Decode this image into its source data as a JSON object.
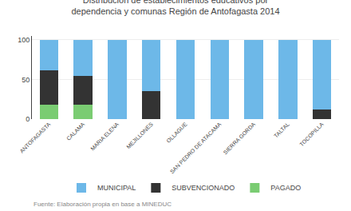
{
  "chart_data": {
    "type": "bar",
    "title": "Distribución de establecimientos educativos por",
    "subtitle": "dependencia y comunas Región de Antofagasta 2014",
    "categories": [
      "ANTOFAGASTA",
      "CALAMA",
      "MARIA ELENA",
      "MEJILLONES",
      "OLLAGUE",
      "SAN PEDRO DE ATACAMA",
      "SIERRA GORDA",
      "TALTAL",
      "TOCOPILLA"
    ],
    "series": [
      {
        "name": "MUNICIPAL",
        "color": "#6db8e8",
        "values": [
          38,
          45,
          100,
          65,
          100,
          100,
          100,
          100,
          88
        ]
      },
      {
        "name": "SUBVENCIONADO",
        "color": "#333333",
        "values": [
          44,
          37,
          0,
          35,
          0,
          0,
          0,
          0,
          12
        ]
      },
      {
        "name": "PAGADO",
        "color": "#7acc72",
        "values": [
          18,
          18,
          0,
          0,
          0,
          0,
          0,
          0,
          0
        ]
      }
    ],
    "stacked": true,
    "ylim": [
      0,
      105
    ],
    "yticks": [
      0,
      50,
      100
    ],
    "grid": true,
    "legend": "bottom",
    "annotations": [
      "Fuente: Elaboración propia en base a MINEDUC"
    ]
  }
}
